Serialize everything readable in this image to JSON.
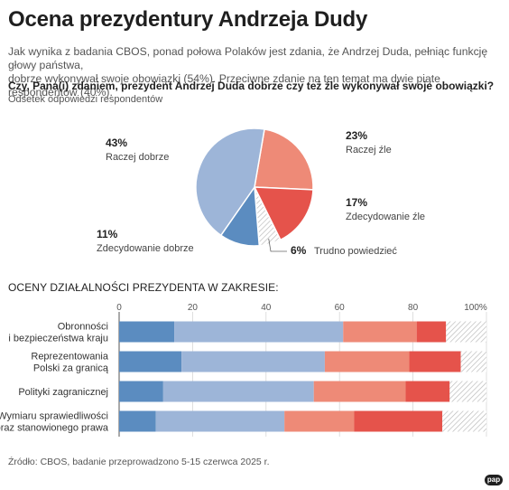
{
  "header": {
    "title": "Ocena prezydentury Andrzeja Dudy",
    "lead_line1": "Jak wynika z badania CBOS, ponad połowa Polaków jest zdania, że Andrzej Duda, pełniąc funkcję głowy państwa,",
    "lead_line2": "dobrze wykonywał swoje obowiązki (54%). Przeciwne zdanie na ten temat ma dwie piąte respondentów (40%)."
  },
  "colors": {
    "raczej_dobrze": "#9db5d8",
    "zdecydowanie_dobrze": "#5b8cc0",
    "raczej_zle": "#ee8a77",
    "zdecydowanie_zle": "#e5534b",
    "trudno": "#e3e3e3"
  },
  "chart_data": [
    {
      "type": "pie",
      "title": "Czy, Pana(i) zdaniem, prezydent Andrzej Duda dobrze czy też źle wykonywał swoje obowiązki?",
      "subtitle": "Odsetek odpowiedzi respondentów",
      "slices": [
        {
          "label": "Raczej dobrze",
          "value": 43,
          "pct_label": "43%"
        },
        {
          "label": "Zdecydowanie dobrze",
          "value": 11,
          "pct_label": "11%"
        },
        {
          "label": "Raczej źle",
          "value": 23,
          "pct_label": "23%"
        },
        {
          "label": "Zdecydowanie źle",
          "value": 17,
          "pct_label": "17%"
        },
        {
          "label": "Trudno powiedzieć",
          "value": 6,
          "pct_label": "6%"
        }
      ]
    },
    {
      "type": "bar",
      "orientation": "horizontal",
      "stacked": true,
      "title": "OCENY DZIAŁALNOŚCI PREZYDENTA W ZAKRESIE:",
      "xlim": [
        0,
        100
      ],
      "xticks": [
        "0",
        "20",
        "40",
        "60",
        "80",
        "100%"
      ],
      "categories": [
        [
          "Obronności",
          "i bezpieczeństwa kraju"
        ],
        [
          "Reprezentowania",
          "Polski za granicą"
        ],
        [
          "Polityki zagranicznej"
        ],
        [
          "Wymiaru sprawiedliwości",
          "oraz stanowionego prawa"
        ]
      ],
      "series": [
        {
          "key": "zdecydowanie_dobrze",
          "values": [
            15,
            17,
            12,
            10
          ]
        },
        {
          "key": "raczej_dobrze",
          "values": [
            46,
            39,
            41,
            35
          ]
        },
        {
          "key": "raczej_zle",
          "values": [
            20,
            23,
            25,
            19
          ]
        },
        {
          "key": "zdecydowanie_zle",
          "values": [
            8,
            14,
            12,
            24
          ]
        },
        {
          "key": "trudno",
          "values": [
            11,
            7,
            10,
            12
          ]
        }
      ]
    }
  ],
  "footer": {
    "source": "Źródło: CBOS, badanie przeprowadzono 5-15 czerwca 2025 r.",
    "logo": "pap"
  }
}
